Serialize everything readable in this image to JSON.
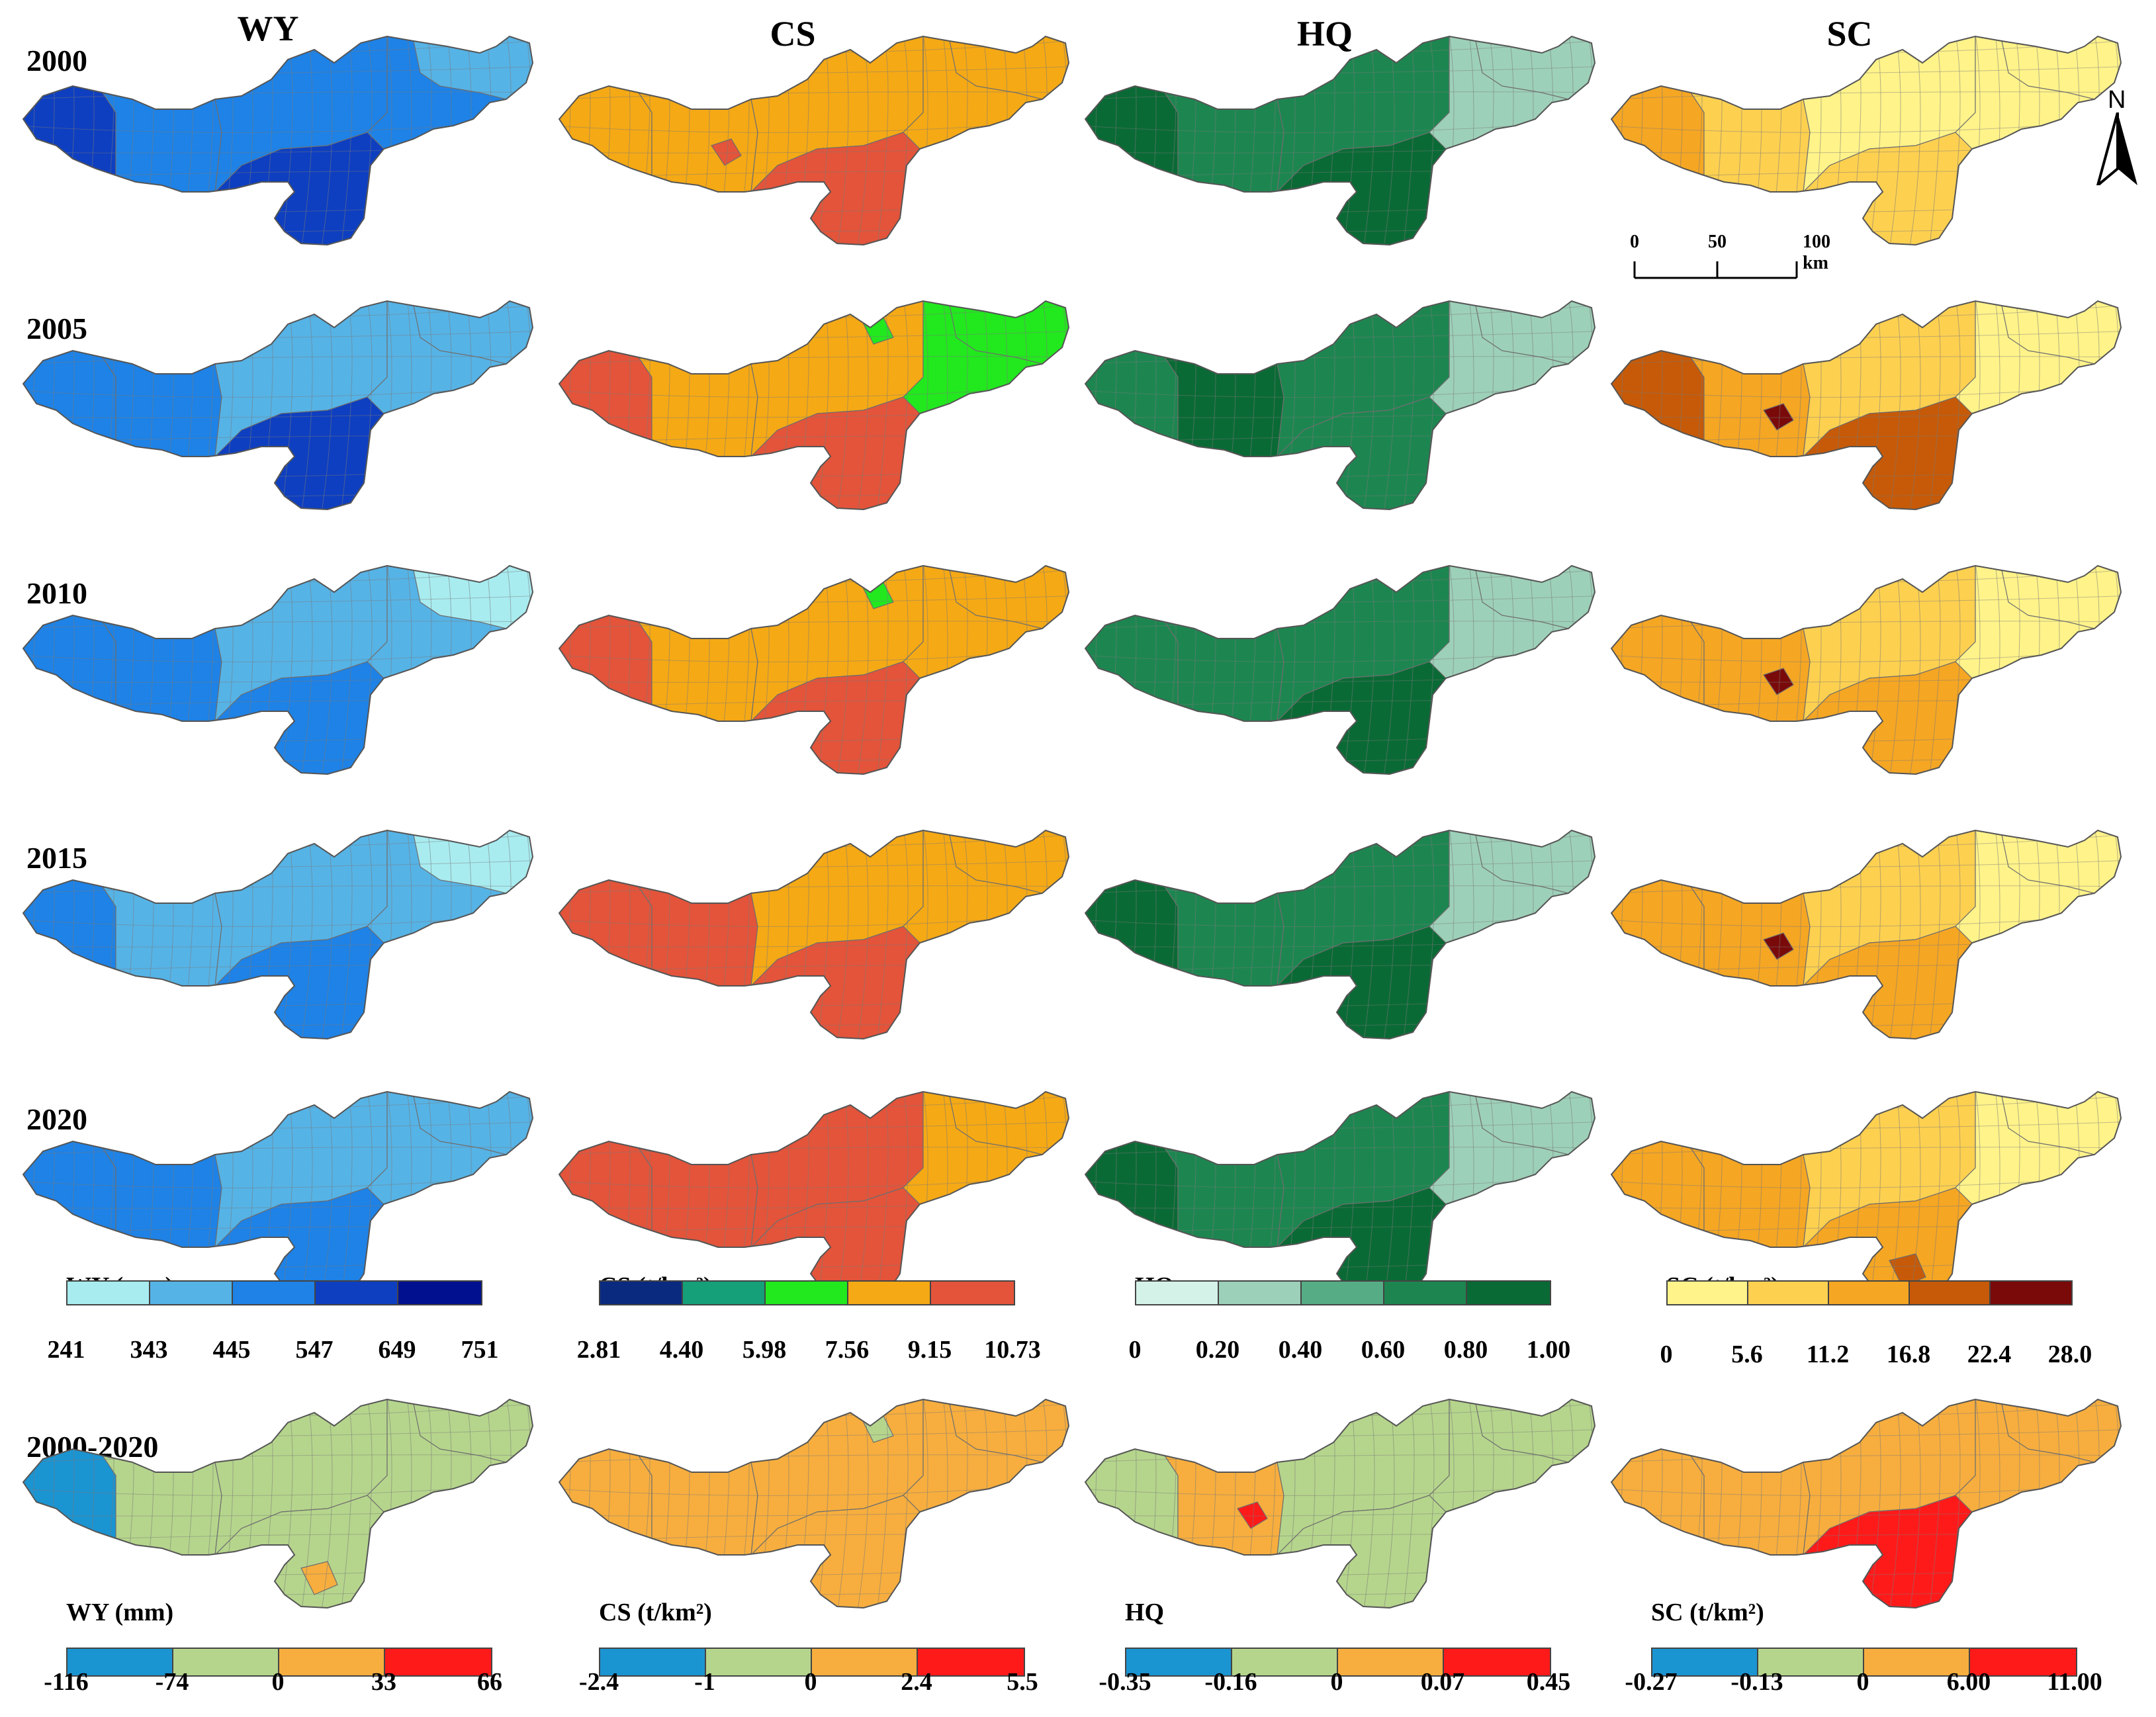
{
  "columns": [
    "WY",
    "CS",
    "HQ",
    "SC"
  ],
  "rows": [
    "2000",
    "2005",
    "2010",
    "2015",
    "2020",
    "2000-2020"
  ],
  "north_label": "N",
  "scalebar": {
    "labels": [
      "0",
      "50",
      "100 km"
    ]
  },
  "colors": {
    "wy": [
      "#a8ecf0",
      "#56b3e6",
      "#1e82e6",
      "#0e3fc0",
      "#00108f"
    ],
    "cs": [
      "#0a2a80",
      "#15a07a",
      "#22e81e",
      "#f5a915",
      "#e3543a"
    ],
    "hq": [
      "#d5f2e8",
      "#9dd0b8",
      "#56ad85",
      "#1d8650",
      "#0a6a35"
    ],
    "sc": [
      "#fff38a",
      "#fdd050",
      "#f5a623",
      "#c65a08",
      "#7a0a0a"
    ],
    "change": [
      "#1b94d2",
      "#b5d58c",
      "#f7ae3e",
      "#ff1a1a"
    ]
  },
  "legends": {
    "wy": {
      "title": "WY (mm)",
      "ticks": [
        "241",
        "343",
        "445",
        "547",
        "649",
        "751"
      ]
    },
    "cs": {
      "title": "CS (t/km²)",
      "ticks": [
        "2.81",
        "4.40",
        "5.98",
        "7.56",
        "9.15",
        "10.73"
      ]
    },
    "hq": {
      "title": "HQ",
      "ticks": [
        "0",
        "0.20",
        "0.40",
        "0.60",
        "0.80",
        "1.00"
      ]
    },
    "sc": {
      "title": "SC (t/km²)",
      "ticks": [
        "0",
        "5.6",
        "11.2",
        "16.8",
        "22.4",
        "28.0"
      ]
    },
    "wy_change": {
      "title": "WY (mm)",
      "ticks": [
        "-116",
        "-74",
        "0",
        "33",
        "66"
      ]
    },
    "cs_change": {
      "title": "CS (t/km²)",
      "ticks": [
        "-2.4",
        "-1",
        "0",
        "2.4",
        "5.5"
      ]
    },
    "hq_change": {
      "title": "HQ",
      "ticks": [
        "-0.35",
        "-0.16",
        "0",
        "0.07",
        "0.45"
      ]
    },
    "sc_change": {
      "title": "SC (t/km²)",
      "ticks": [
        "-0.27",
        "-0.13",
        "0",
        "6.00",
        "11.00"
      ]
    }
  }
}
